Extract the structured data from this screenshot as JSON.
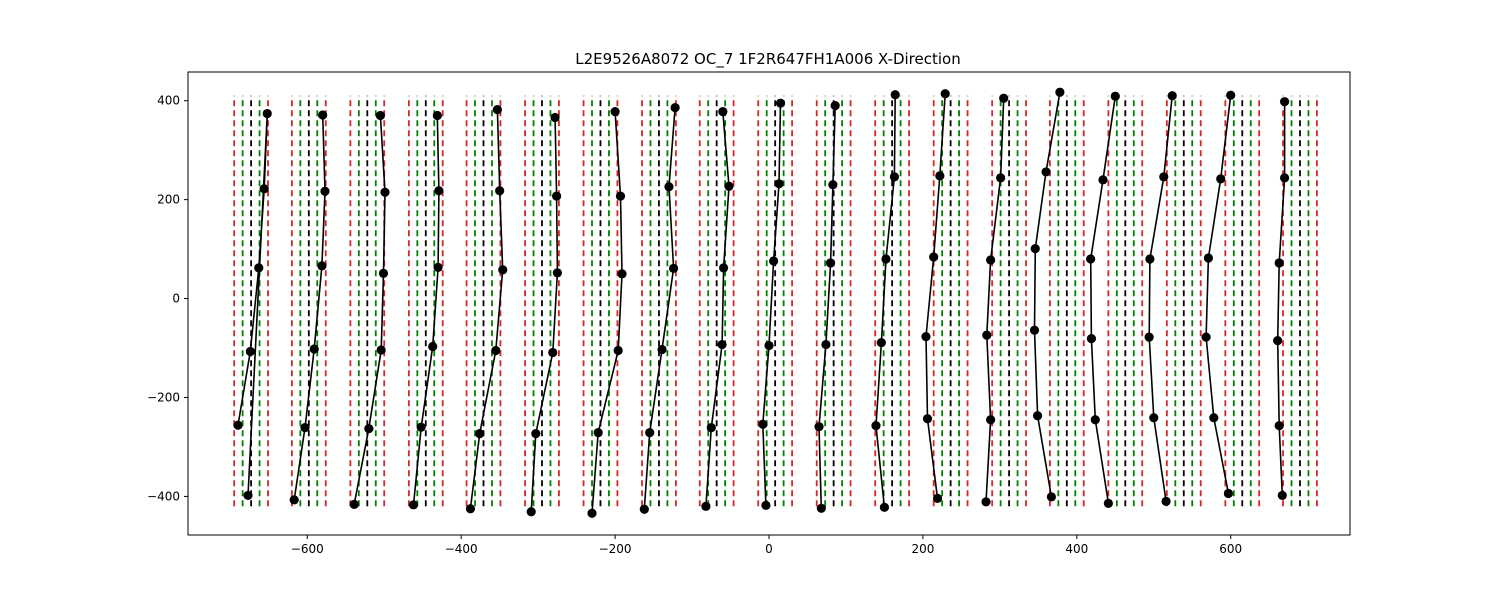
{
  "chart_data": {
    "type": "line",
    "title": "L2E9526A8072  OC_7  1F2R647FH1A006  X-Direction",
    "xlabel": "",
    "ylabel": "",
    "xlim": [
      -755,
      755
    ],
    "ylim": [
      -478,
      458
    ],
    "grid": false,
    "x_ticks": [
      -600,
      -400,
      -200,
      0,
      200,
      400,
      600
    ],
    "y_ticks": [
      -400,
      -200,
      0,
      200,
      400
    ],
    "x_tick_labels": [
      "−600",
      "−400",
      "−200",
      "0",
      "200",
      "400",
      "600"
    ],
    "y_tick_labels": [
      "−400",
      "−200",
      "0",
      "200",
      "400"
    ],
    "reference_lines": {
      "y_range": [
        -420,
        410
      ],
      "offsets": [
        -22,
        -11,
        0,
        11,
        22
      ],
      "colors": [
        "#d62728",
        "#008000",
        "#000000",
        "#008000",
        "#d62728"
      ]
    },
    "centers": [
      -673,
      -598,
      -522,
      -446,
      -371,
      -295,
      -219,
      -143,
      -68,
      8,
      84,
      160,
      236,
      312,
      387,
      463,
      539,
      615,
      690
    ],
    "series": [
      {
        "points": [
          [
            -690,
            -256
          ],
          [
            -674,
            -107
          ],
          [
            -663,
            62
          ],
          [
            -656,
            222
          ],
          [
            -652,
            374
          ],
          [
            -677,
            -398
          ]
        ]
      },
      {
        "points": [
          [
            -580,
            371
          ],
          [
            -577,
            217
          ],
          [
            -581,
            66
          ],
          [
            -591,
            -102
          ],
          [
            -603,
            -261
          ],
          [
            -617,
            -407
          ]
        ]
      },
      {
        "points": [
          [
            -505,
            370
          ],
          [
            -499,
            215
          ],
          [
            -501,
            51
          ],
          [
            -504,
            -104
          ],
          [
            -520,
            -263
          ],
          [
            -539,
            -416
          ]
        ]
      },
      {
        "points": [
          [
            -431,
            370
          ],
          [
            -429,
            218
          ],
          [
            -430,
            63
          ],
          [
            -437,
            -97
          ],
          [
            -452,
            -260
          ],
          [
            -462,
            -417
          ]
        ]
      },
      {
        "points": [
          [
            -353,
            382
          ],
          [
            -350,
            218
          ],
          [
            -346,
            58
          ],
          [
            -355,
            -105
          ],
          [
            -376,
            -273
          ],
          [
            -388,
            -425
          ]
        ]
      },
      {
        "points": [
          [
            -278,
            366
          ],
          [
            -276,
            207
          ],
          [
            -275,
            52
          ],
          [
            -281,
            -109
          ],
          [
            -303,
            -273
          ],
          [
            -309,
            -431
          ]
        ]
      },
      {
        "points": [
          [
            -200,
            378
          ],
          [
            -193,
            207
          ],
          [
            -191,
            50
          ],
          [
            -196,
            -105
          ],
          [
            -222,
            -271
          ],
          [
            -230,
            -434
          ]
        ]
      },
      {
        "points": [
          [
            -122,
            386
          ],
          [
            -130,
            226
          ],
          [
            -124,
            61
          ],
          [
            -139,
            -103
          ],
          [
            -155,
            -271
          ],
          [
            -162,
            -426
          ]
        ]
      },
      {
        "points": [
          [
            -60,
            378
          ],
          [
            -52,
            227
          ],
          [
            -59,
            62
          ],
          [
            -61,
            -93
          ],
          [
            -75,
            -261
          ],
          [
            -82,
            -420
          ]
        ]
      },
      {
        "points": [
          [
            15,
            395
          ],
          [
            13,
            232
          ],
          [
            6,
            76
          ],
          [
            0,
            -95
          ],
          [
            -8,
            -254
          ],
          [
            -4,
            -418
          ]
        ]
      },
      {
        "points": [
          [
            86,
            390
          ],
          [
            83,
            230
          ],
          [
            80,
            72
          ],
          [
            74,
            -93
          ],
          [
            65,
            -259
          ],
          [
            68,
            -424
          ]
        ]
      },
      {
        "points": [
          [
            164,
            412
          ],
          [
            163,
            246
          ],
          [
            152,
            80
          ],
          [
            146,
            -89
          ],
          [
            139,
            -257
          ],
          [
            150,
            -422
          ]
        ]
      },
      {
        "points": [
          [
            229,
            414
          ],
          [
            222,
            248
          ],
          [
            214,
            84
          ],
          [
            204,
            -77
          ],
          [
            206,
            -243
          ],
          [
            219,
            -404
          ]
        ]
      },
      {
        "points": [
          [
            305,
            405
          ],
          [
            301,
            244
          ],
          [
            288,
            78
          ],
          [
            283,
            -74
          ],
          [
            288,
            -245
          ],
          [
            282,
            -411
          ]
        ]
      },
      {
        "points": [
          [
            378,
            417
          ],
          [
            360,
            256
          ],
          [
            346,
            101
          ],
          [
            345,
            -64
          ],
          [
            349,
            -237
          ],
          [
            367,
            -401
          ]
        ]
      },
      {
        "points": [
          [
            450,
            409
          ],
          [
            434,
            240
          ],
          [
            418,
            80
          ],
          [
            419,
            -81
          ],
          [
            424,
            -245
          ],
          [
            441,
            -414
          ]
        ]
      },
      {
        "points": [
          [
            524,
            410
          ],
          [
            513,
            246
          ],
          [
            495,
            80
          ],
          [
            494,
            -78
          ],
          [
            500,
            -241
          ],
          [
            516,
            -410
          ]
        ]
      },
      {
        "points": [
          [
            600,
            411
          ],
          [
            587,
            242
          ],
          [
            571,
            82
          ],
          [
            568,
            -78
          ],
          [
            578,
            -241
          ],
          [
            597,
            -394
          ]
        ]
      },
      {
        "points": [
          [
            670,
            398
          ],
          [
            670,
            244
          ],
          [
            663,
            72
          ],
          [
            661,
            -85
          ],
          [
            663,
            -257
          ],
          [
            667,
            -398
          ]
        ]
      }
    ]
  }
}
